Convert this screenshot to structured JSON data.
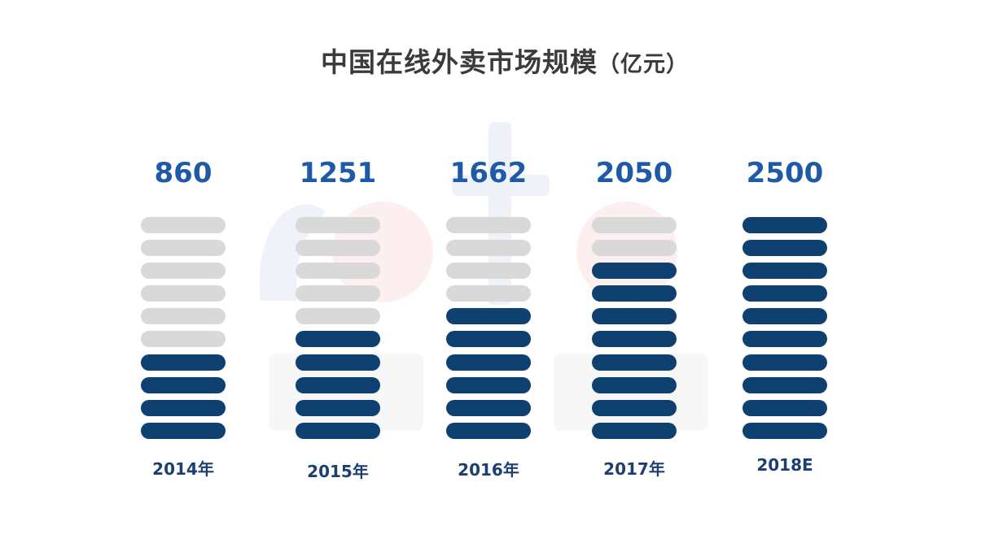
{
  "chart_data": {
    "type": "bar",
    "title": "中国在线外卖市场规模",
    "title_unit": "（亿元）",
    "categories": [
      "2014年",
      "2015年",
      "2016年",
      "2017年",
      "2018E"
    ],
    "values": [
      860,
      1251,
      1662,
      2050,
      2500
    ],
    "value_labels": [
      "860",
      "1251",
      "1662",
      "2050",
      "2500"
    ],
    "ylim": [
      0,
      2500
    ],
    "segments_total": 10,
    "filled_segments": [
      4,
      5,
      6,
      8,
      10
    ],
    "colors": {
      "filled": "#0e416f",
      "empty": "#d9d9d9",
      "value_text": "#1f5aa6",
      "year_text": "#1c3f72",
      "title_text": "#3b3b3b"
    },
    "grid": false,
    "legend": "none"
  }
}
